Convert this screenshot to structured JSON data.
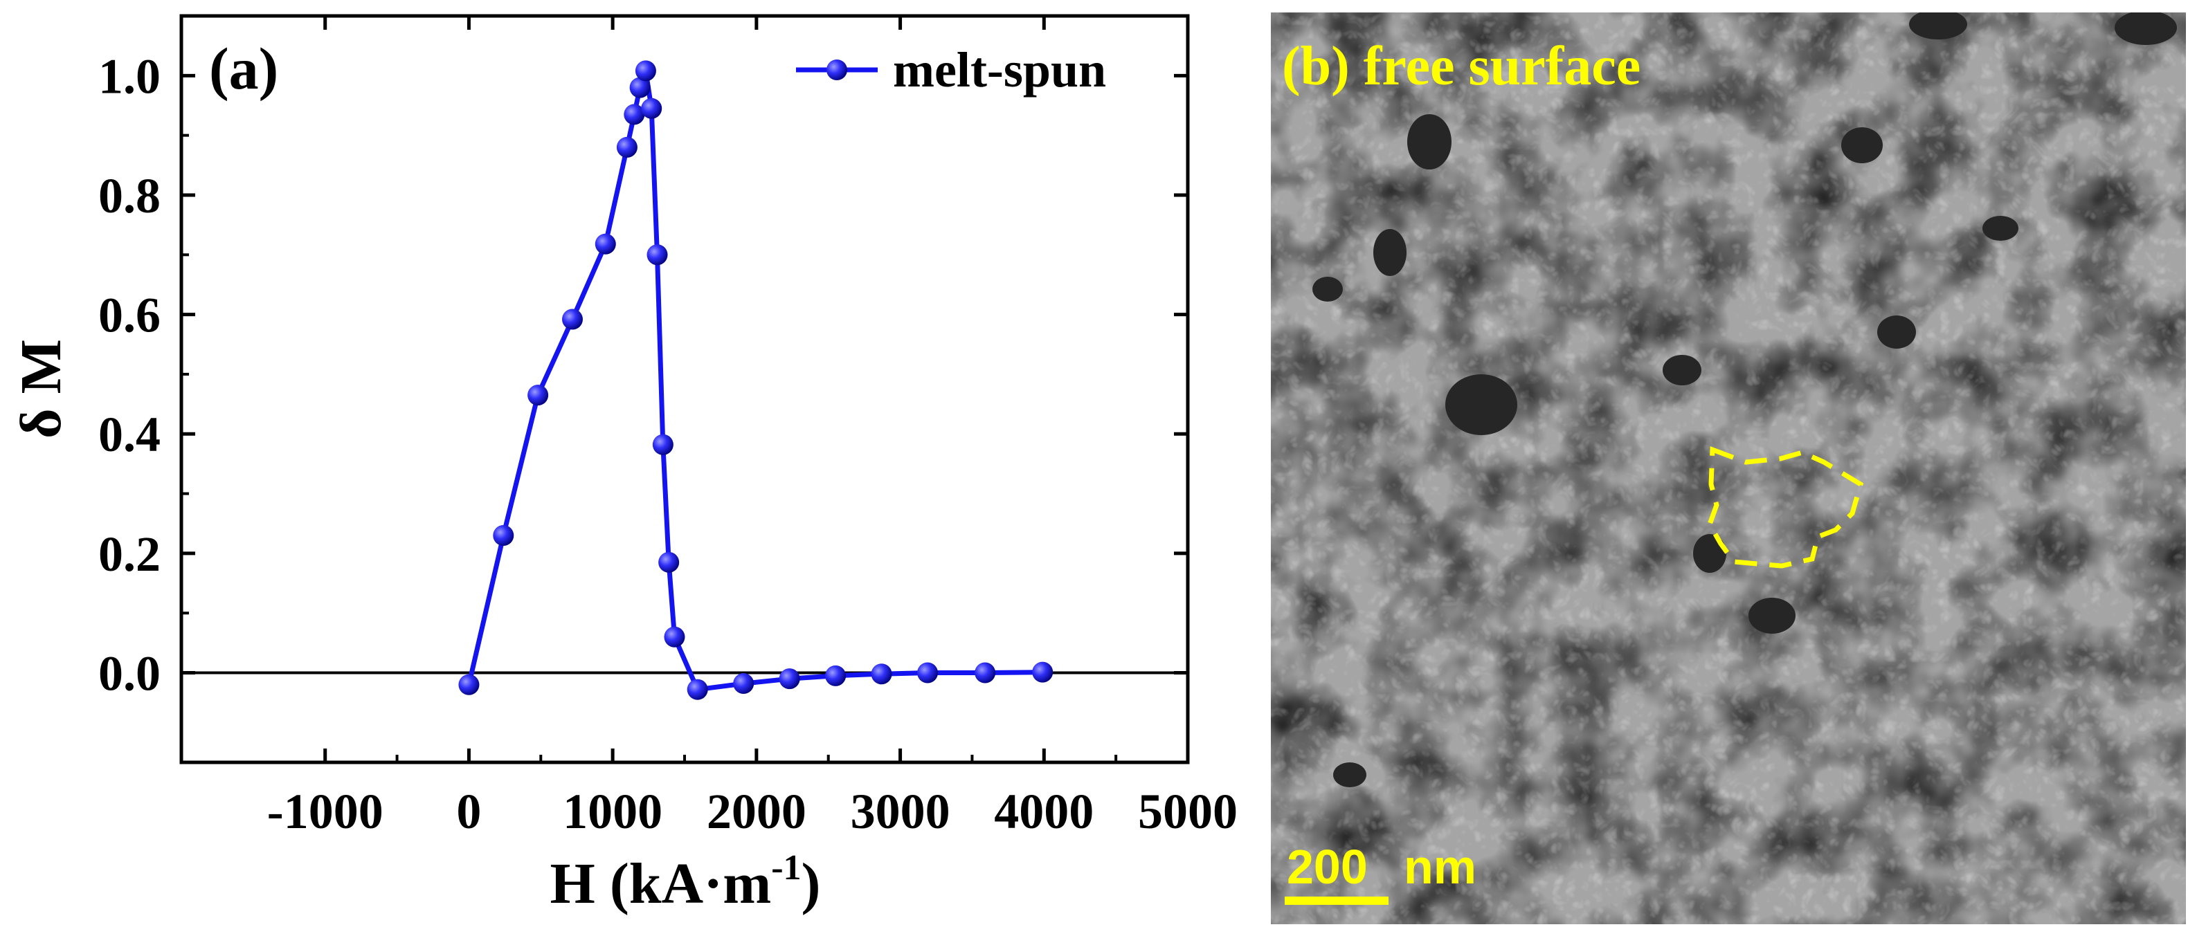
{
  "chart_data": {
    "type": "line",
    "panel_label": "(a)",
    "title": "",
    "xlabel": "H (kA·m",
    "xlabel_sup": "-1",
    "xlabel_close": ")",
    "ylabel": "δ M",
    "xlim": [
      -2000,
      5000
    ],
    "ylim": [
      -0.15,
      1.1
    ],
    "xticks": [
      -1000,
      0,
      1000,
      2000,
      3000,
      4000,
      5000
    ],
    "xtick_labels": [
      "-1000",
      "0",
      "1000",
      "2000",
      "3000",
      "4000",
      "5000"
    ],
    "yticks": [
      0.0,
      0.2,
      0.4,
      0.6,
      0.8,
      1.0
    ],
    "ytick_labels": [
      "0.0",
      "0.2",
      "0.4",
      "0.6",
      "0.8",
      "1.0"
    ],
    "grid": false,
    "zero_line": true,
    "legend": {
      "position": "top-right",
      "entries": [
        "melt-spun"
      ]
    },
    "series": [
      {
        "name": "melt-spun",
        "color": "#0000ee",
        "marker": "sphere",
        "points": [
          [
            0,
            -0.02
          ],
          [
            240,
            0.23
          ],
          [
            480,
            0.465
          ],
          [
            720,
            0.592
          ],
          [
            950,
            0.718
          ],
          [
            1100,
            0.88
          ],
          [
            1150,
            0.935
          ],
          [
            1190,
            0.98
          ],
          [
            1230,
            1.008
          ],
          [
            1270,
            0.945
          ],
          [
            1310,
            0.7
          ],
          [
            1350,
            0.382
          ],
          [
            1390,
            0.185
          ],
          [
            1430,
            0.06
          ],
          [
            1590,
            -0.028
          ],
          [
            1910,
            -0.018
          ],
          [
            2230,
            -0.01
          ],
          [
            2550,
            -0.005
          ],
          [
            2870,
            -0.002
          ],
          [
            3190,
            0.0
          ],
          [
            3590,
            0.0
          ],
          [
            3990,
            0.001
          ]
        ]
      }
    ]
  },
  "micrograph": {
    "label": "(b) free surface",
    "scale_value": "200",
    "scale_unit": "nm",
    "annotation_color": "#ffff00"
  }
}
